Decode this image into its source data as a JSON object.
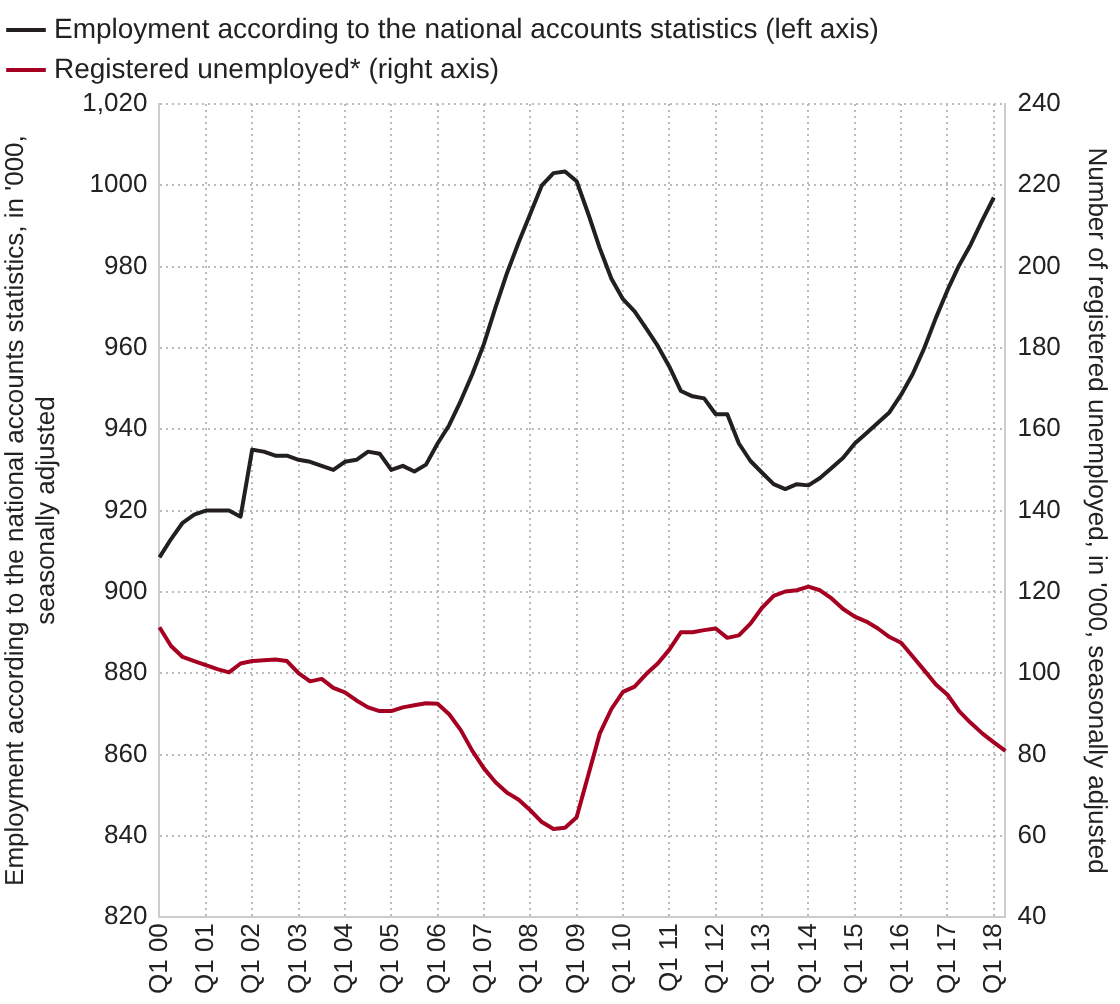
{
  "chart_data": {
    "type": "line",
    "ylabel": "Employment according to the national accounts statistics, in '000, seasonally adjusted",
    "y2label": "Number of registered unemployed, in '000, seasonally adjusted",
    "categories": [
      "Q1 00",
      null,
      null,
      null,
      "Q1 01",
      null,
      null,
      null,
      "Q1 02",
      null,
      null,
      null,
      "Q1 03",
      null,
      null,
      null,
      "Q1 04",
      null,
      null,
      null,
      "Q1 05",
      null,
      null,
      null,
      "Q1 06",
      null,
      null,
      null,
      "Q1 07",
      null,
      null,
      null,
      "Q1 08",
      null,
      null,
      null,
      "Q1 09",
      null,
      null,
      null,
      "Q1 10",
      null,
      null,
      null,
      "Q1 11",
      null,
      null,
      null,
      "Q1 12",
      null,
      null,
      null,
      "Q1 13",
      null,
      null,
      null,
      "Q1 14",
      null,
      null,
      null,
      "Q1 15",
      null,
      null,
      null,
      "Q1 16",
      null,
      null,
      null,
      "Q1 17",
      null,
      null,
      null,
      "Q1 18",
      null
    ],
    "series": [
      {
        "name": "Employment according to the national accounts statistics (left axis)",
        "color": "#231f20",
        "values": [
          908.5,
          913,
          917,
          919,
          920,
          920,
          920,
          918.5,
          935,
          934.5,
          933.5,
          933.5,
          932.5,
          932,
          931,
          930,
          932,
          932.5,
          934.5,
          934,
          930,
          931,
          929.6,
          931.3,
          936.5,
          941,
          947,
          953.6,
          961,
          970,
          978.5,
          986,
          993,
          1000,
          1003,
          1003.4,
          1001,
          993,
          984.5,
          977,
          972,
          969,
          964.8,
          960.5,
          955.4,
          949.4,
          948.1,
          947.6,
          943.7,
          943.7,
          936.5,
          932.2,
          929.3,
          926.5,
          925.3,
          926.5,
          926.2,
          928,
          930.5,
          933,
          936.5,
          939,
          941.6,
          944.2,
          948.5,
          953.6,
          960,
          967.4,
          974.2,
          980.3,
          985.4,
          991.4,
          997,
          null
        ]
      },
      {
        "name": "Registered unemployed* (right axis)",
        "color": "#a50021",
        "axis": "y2",
        "values": [
          111.3,
          106.7,
          104,
          103,
          102,
          101,
          100.2,
          102.4,
          103,
          103.2,
          103.4,
          103,
          100,
          98,
          98.6,
          96.4,
          95.3,
          93.3,
          91.6,
          90.7,
          90.7,
          91.6,
          92.1,
          92.6,
          92.5,
          89.9,
          86,
          80.9,
          76.6,
          73.2,
          70.6,
          68.9,
          66.3,
          63.4,
          61.7,
          62,
          64.6,
          74.9,
          85.2,
          91.2,
          95.4,
          96.7,
          99.8,
          102.4,
          105.8,
          110.1,
          110.1,
          110.6,
          111,
          108.7,
          109.3,
          112.2,
          116.1,
          119,
          120.1,
          120.4,
          121.3,
          120.4,
          118.4,
          115.8,
          113.9,
          112.7,
          111,
          108.9,
          107.5,
          104.1,
          100.7,
          97.2,
          94.7,
          90.7,
          87.8,
          85.2,
          83,
          80.9
        ]
      }
    ],
    "ylim": [
      820,
      1020
    ],
    "yticks": [
      820,
      840,
      860,
      880,
      900,
      920,
      940,
      960,
      980,
      1000,
      {
        "value": 1020,
        "label": "1,020"
      }
    ],
    "y2lim": [
      40,
      240
    ],
    "y2ticks": [
      40,
      60,
      80,
      100,
      120,
      140,
      160,
      180,
      200,
      220,
      240
    ],
    "grid": true,
    "legend": "top left",
    "line_style": "solid",
    "marker": "none"
  }
}
